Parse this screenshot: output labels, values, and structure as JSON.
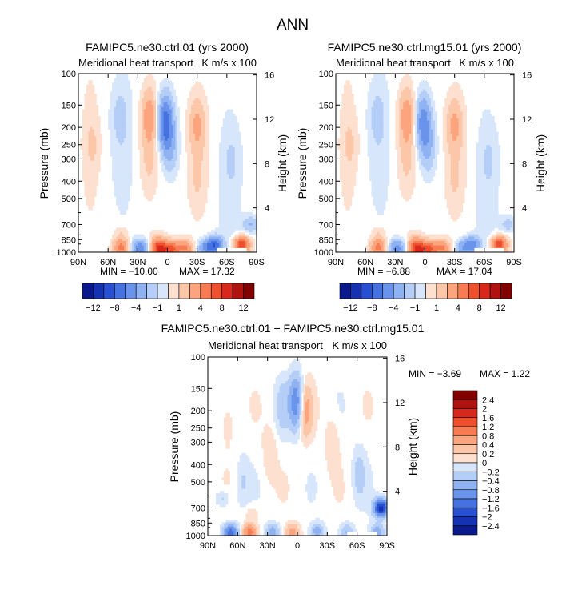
{
  "figure_title": "ANN",
  "colors": {
    "fill_positive": [
      "#fde0cf",
      "#fcc6a8",
      "#fba47d",
      "#f77c54",
      "#ee4f2d",
      "#d8281b",
      "#b0120f",
      "#820000"
    ],
    "fill_negative": [
      "#d7e6fa",
      "#b4cef8",
      "#8fb2f2",
      "#6a93eb",
      "#4672e0",
      "#2850d2",
      "#1532b3",
      "#0a1a8c"
    ],
    "neutral": "#ffffff",
    "nodata": "#ffffff"
  },
  "chart_data": [
    {
      "type": "heatmap",
      "subtype": "latitude-pressure contour",
      "title": "FAMIPC5.ne30.ctrl.01 (yrs 2000)",
      "subtitle": "Meridional heat transport",
      "units": "K m/s x 100",
      "xlabel": "",
      "ylabel": "Pressure (mb)",
      "y2label": "Height (km)",
      "x_ticks": [
        "90N",
        "60N",
        "30N",
        "0",
        "30S",
        "60S",
        "90S"
      ],
      "x_range": [
        90,
        -90
      ],
      "y_ticks": [
        100,
        150,
        200,
        250,
        300,
        400,
        500,
        700,
        850,
        1000
      ],
      "y_range": [
        1000,
        100
      ],
      "y_scale": "log-pressure",
      "y2_ticks": [
        4,
        8,
        12,
        16
      ],
      "min_label": "MIN = −10.00",
      "max_label": "MAX =  17.32",
      "min": -10.0,
      "max": 17.32,
      "colorbar": {
        "orientation": "horizontal",
        "labels": [
          "−12",
          "−8",
          "−4",
          "−1",
          "1",
          "4",
          "8",
          "12"
        ],
        "levels": [
          -12,
          -10,
          -8,
          -6,
          -4,
          -2,
          -1,
          0,
          1,
          2,
          4,
          6,
          8,
          10,
          12
        ]
      },
      "features": [
        {
          "lat": 47,
          "p": 940,
          "value": 6
        },
        {
          "lat": 47,
          "p": 780,
          "value": 1.5
        },
        {
          "lat": 28,
          "p": 950,
          "value": -7
        },
        {
          "lat": 8,
          "p": 965,
          "value": 9
        },
        {
          "lat": 10,
          "p": 850,
          "value": 2
        },
        {
          "lat": -4,
          "p": 960,
          "value": 7
        },
        {
          "lat": -18,
          "p": 950,
          "value": 5
        },
        {
          "lat": -38,
          "p": 950,
          "value": -5
        },
        {
          "lat": -48,
          "p": 910,
          "value": -8
        },
        {
          "lat": -75,
          "p": 910,
          "value": 9
        },
        {
          "lat": -84,
          "p": 700,
          "value": -3
        },
        {
          "lat": 18,
          "p": 175,
          "value": 4
        },
        {
          "lat": 18,
          "p": 320,
          "value": 1
        },
        {
          "lat": 2,
          "p": 185,
          "value": -8
        },
        {
          "lat": -3,
          "p": 260,
          "value": -3
        },
        {
          "lat": -30,
          "p": 195,
          "value": 3
        },
        {
          "lat": -30,
          "p": 400,
          "value": 1
        },
        {
          "lat": 75,
          "p": 250,
          "value": 1
        },
        {
          "lat": 48,
          "p": 175,
          "value": -1.5
        },
        {
          "lat": -65,
          "p": 300,
          "value": -1
        }
      ]
    },
    {
      "type": "heatmap",
      "subtype": "latitude-pressure contour",
      "title": "FAMIPC5.ne30.ctrl.mg15.01 (yrs 2000)",
      "subtitle": "Meridional heat transport",
      "units": "K m/s x 100",
      "xlabel": "",
      "ylabel": "Pressure (mb)",
      "y2label": "Height (km)",
      "x_ticks": [
        "90N",
        "60N",
        "30N",
        "0",
        "30S",
        "60S",
        "90S"
      ],
      "x_range": [
        90,
        -90
      ],
      "y_ticks": [
        100,
        150,
        200,
        250,
        300,
        400,
        500,
        700,
        850,
        1000
      ],
      "y_range": [
        1000,
        100
      ],
      "y_scale": "log-pressure",
      "y2_ticks": [
        4,
        8,
        12,
        16
      ],
      "min_label": "MIN =  −6.88",
      "max_label": "MAX =  17.04",
      "min": -6.88,
      "max": 17.04,
      "colorbar": {
        "orientation": "horizontal",
        "labels": [
          "−12",
          "−8",
          "−4",
          "−1",
          "1",
          "4",
          "8",
          "12"
        ],
        "levels": [
          -12,
          -10,
          -8,
          -6,
          -4,
          -2,
          -1,
          0,
          1,
          2,
          4,
          6,
          8,
          10,
          12
        ]
      },
      "features": [
        {
          "lat": 47,
          "p": 940,
          "value": 6
        },
        {
          "lat": 47,
          "p": 780,
          "value": 1.5
        },
        {
          "lat": 28,
          "p": 950,
          "value": -6
        },
        {
          "lat": 8,
          "p": 965,
          "value": 9
        },
        {
          "lat": 10,
          "p": 850,
          "value": 2
        },
        {
          "lat": -4,
          "p": 960,
          "value": 7
        },
        {
          "lat": -18,
          "p": 950,
          "value": 5
        },
        {
          "lat": -38,
          "p": 950,
          "value": -4
        },
        {
          "lat": -48,
          "p": 910,
          "value": -6
        },
        {
          "lat": -75,
          "p": 910,
          "value": 9
        },
        {
          "lat": -84,
          "p": 700,
          "value": -2
        },
        {
          "lat": 18,
          "p": 175,
          "value": 4
        },
        {
          "lat": 18,
          "p": 320,
          "value": 1
        },
        {
          "lat": 2,
          "p": 185,
          "value": -6
        },
        {
          "lat": -3,
          "p": 260,
          "value": -3
        },
        {
          "lat": -30,
          "p": 195,
          "value": 3
        },
        {
          "lat": -30,
          "p": 400,
          "value": 1
        },
        {
          "lat": 75,
          "p": 250,
          "value": 1
        },
        {
          "lat": 48,
          "p": 175,
          "value": -1.5
        },
        {
          "lat": -65,
          "p": 300,
          "value": -1
        }
      ]
    },
    {
      "type": "heatmap",
      "subtype": "latitude-pressure contour (difference)",
      "title": "FAMIPC5.ne30.ctrl.01 − FAMIPC5.ne30.ctrl.mg15.01",
      "subtitle": "Meridional heat transport",
      "units": "K m/s x 100",
      "xlabel": "",
      "ylabel": "Pressure (mb)",
      "y2label": "Height (km)",
      "x_ticks": [
        "90N",
        "60N",
        "30N",
        "0",
        "30S",
        "60S",
        "90S"
      ],
      "x_range": [
        90,
        -90
      ],
      "y_ticks": [
        100,
        150,
        200,
        250,
        300,
        400,
        500,
        700,
        850,
        1000
      ],
      "y_range": [
        1000,
        100
      ],
      "y_scale": "log-pressure",
      "y2_ticks": [
        4,
        8,
        12,
        16
      ],
      "min_label": "MIN =   −3.69",
      "max_label": "MAX =    1.22",
      "min": -3.69,
      "max": 1.22,
      "colorbar": {
        "orientation": "vertical",
        "labels": [
          "2.4",
          "2",
          "1.6",
          "1.2",
          "0.8",
          "0.4",
          "0.2",
          "0",
          "−0.2",
          "−0.4",
          "−0.8",
          "−1.2",
          "−1.6",
          "−2",
          "−2.4"
        ],
        "levels": [
          -2.4,
          -2,
          -1.6,
          -1.2,
          -0.8,
          -0.4,
          -0.2,
          0,
          0.2,
          0.4,
          0.8,
          1.2,
          1.6,
          2,
          2.4
        ]
      },
      "features": [
        {
          "lat": 67,
          "p": 960,
          "value": -1.6
        },
        {
          "lat": 48,
          "p": 960,
          "value": 1.2
        },
        {
          "lat": 46,
          "p": 750,
          "value": 0.3
        },
        {
          "lat": 25,
          "p": 955,
          "value": -0.8
        },
        {
          "lat": 5,
          "p": 960,
          "value": 0.8
        },
        {
          "lat": -20,
          "p": 955,
          "value": -0.8
        },
        {
          "lat": -50,
          "p": 950,
          "value": -0.6
        },
        {
          "lat": -62,
          "p": 450,
          "value": -0.4
        },
        {
          "lat": -84,
          "p": 700,
          "value": -2.4
        },
        {
          "lat": -80,
          "p": 960,
          "value": -0.9
        },
        {
          "lat": 1,
          "p": 180,
          "value": -1.4
        },
        {
          "lat": -8,
          "p": 200,
          "value": 0.8
        },
        {
          "lat": 15,
          "p": 190,
          "value": -0.4
        },
        {
          "lat": 28,
          "p": 350,
          "value": 0.3
        },
        {
          "lat": 55,
          "p": 500,
          "value": -0.3
        },
        {
          "lat": 75,
          "p": 620,
          "value": -0.4
        },
        {
          "lat": -35,
          "p": 300,
          "value": 0.3
        },
        {
          "lat": 70,
          "p": 230,
          "value": 0.25
        }
      ]
    }
  ]
}
